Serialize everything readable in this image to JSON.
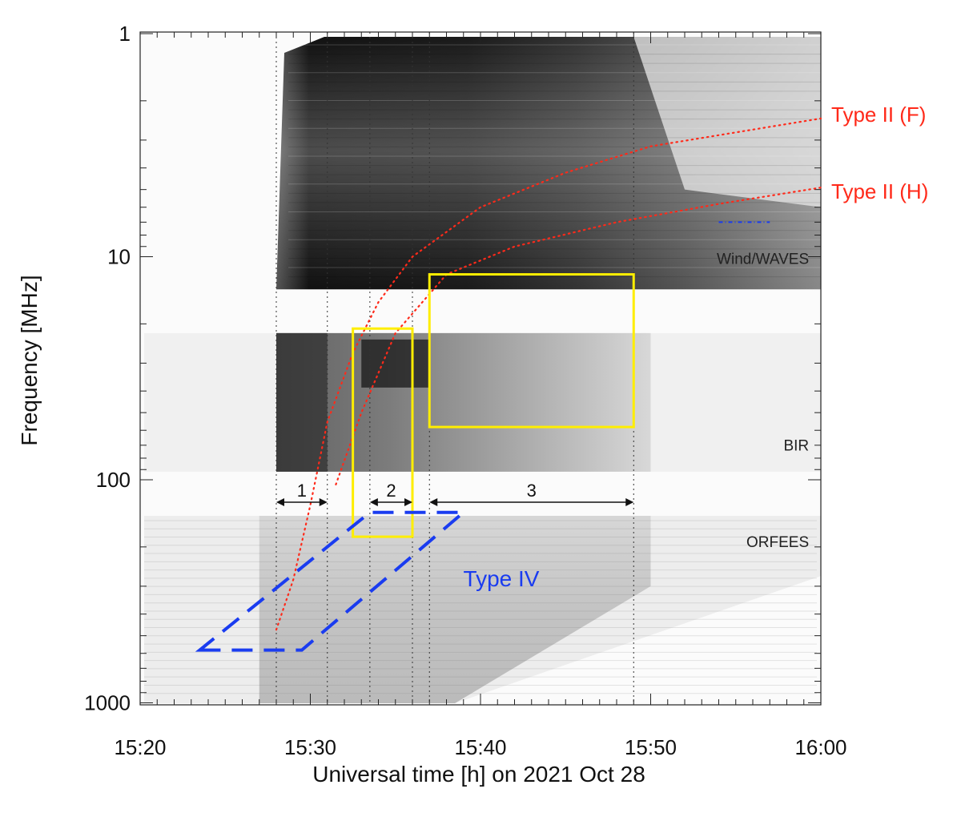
{
  "chart_data": {
    "type": "heatmap",
    "title": "",
    "xlabel": "Universal time [h] on 2021 Oct 28",
    "ylabel": "Frequency [MHz]",
    "x_ticks": [
      "15:20",
      "15:30",
      "15:40",
      "15:50",
      "16:00"
    ],
    "y_ticks": [
      "1",
      "10",
      "100",
      "1000"
    ],
    "xlim_minutes": [
      0,
      40
    ],
    "ylim_mhz": [
      1,
      1000
    ],
    "y_scale": "log",
    "y_inverted": true,
    "colormap": "grayscale (dark = intense)",
    "instruments": [
      {
        "name": "Wind/WAVES",
        "freq_mhz": [
          1,
          14
        ],
        "t_start": "15:28"
      },
      {
        "name": "BIR",
        "freq_mhz": [
          22,
          92
        ],
        "t_start": "15:28"
      },
      {
        "name": "ORFEES",
        "freq_mhz": [
          145,
          1000
        ],
        "t_start": "15:27"
      }
    ],
    "reference_times": [
      "15:28",
      "15:31",
      "15:33.5",
      "15:36",
      "15:37",
      "15:49"
    ],
    "phases": [
      {
        "label": "1",
        "start": "15:28",
        "end": "15:31"
      },
      {
        "label": "2",
        "start": "15:33.5",
        "end": "15:36"
      },
      {
        "label": "3",
        "start": "15:37",
        "end": "15:49"
      }
    ],
    "type_ii": [
      {
        "label": "Type II (F)",
        "color": "#ff2a1a",
        "points": [
          [
            "15:28",
            470
          ],
          [
            "15:29",
            280
          ],
          [
            "15:30",
            130
          ],
          [
            "15:31",
            55
          ],
          [
            "15:32.5",
            27
          ],
          [
            "15:34",
            16
          ],
          [
            "15:36",
            10
          ],
          [
            "15:40",
            6
          ],
          [
            "15:45",
            4.2
          ],
          [
            "15:50",
            3.2
          ],
          [
            "16:00",
            2.4
          ]
        ]
      },
      {
        "label": "Type II (H)",
        "color": "#ff2a1a",
        "points": [
          [
            "15:31.5",
            105
          ],
          [
            "15:33",
            50
          ],
          [
            "15:35",
            22
          ],
          [
            "15:38",
            12
          ],
          [
            "15:42",
            9
          ],
          [
            "15:48",
            7
          ],
          [
            "15:54",
            5.8
          ],
          [
            "16:00",
            4.9
          ]
        ]
      }
    ],
    "type_iv": {
      "label": "Type IV",
      "color": "#1a3cf0",
      "vertices": [
        [
          "15:23.5",
          580
        ],
        [
          "15:29.5",
          580
        ],
        [
          "15:39",
          140
        ],
        [
          "15:33.5",
          140
        ]
      ]
    },
    "highlight_boxes": [
      {
        "t": [
          "15:32.5",
          "15:36"
        ],
        "freq_mhz": [
          21,
          180
        ],
        "color": "#ffee00"
      },
      {
        "t": [
          "15:37",
          "15:49"
        ],
        "freq_mhz": [
          12,
          58
        ],
        "color": "#ffee00"
      }
    ]
  }
}
